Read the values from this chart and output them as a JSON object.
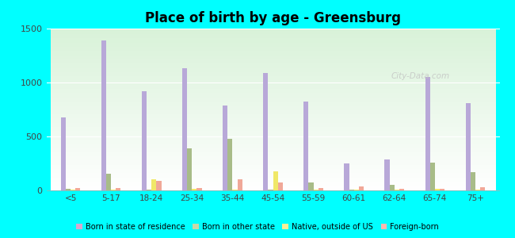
{
  "title": "Place of birth by age - Greensburg",
  "categories": [
    "<5",
    "5-17",
    "18-24",
    "25-34",
    "35-44",
    "45-54",
    "55-59",
    "60-61",
    "62-64",
    "65-74",
    "75+"
  ],
  "series": {
    "Born in state of residence": [
      680,
      1390,
      920,
      1130,
      790,
      1090,
      820,
      250,
      290,
      1050,
      810
    ],
    "Born in other state": [
      15,
      155,
      10,
      390,
      480,
      5,
      70,
      5,
      50,
      260,
      170
    ],
    "Native, outside of US": [
      5,
      5,
      105,
      15,
      5,
      175,
      5,
      5,
      5,
      15,
      5
    ],
    "Foreign-born": [
      25,
      20,
      90,
      25,
      100,
      75,
      25,
      35,
      18,
      18,
      28
    ]
  },
  "colors": {
    "Born in state of residence": "#b8a8d8",
    "Born in other state": "#a8bc88",
    "Native, outside of US": "#f0e868",
    "Foreign-born": "#f0a898"
  },
  "legend_colors": {
    "Born in state of residence": "#d8a8d0",
    "Born in other state": "#c8d8a8",
    "Native, outside of US": "#f8f098",
    "Foreign-born": "#f8b8b0"
  },
  "ylim": [
    0,
    1500
  ],
  "yticks": [
    0,
    500,
    1000,
    1500
  ],
  "background_color": "#00ffff",
  "bar_width": 0.12,
  "figsize": [
    6.5,
    3.0
  ],
  "dpi": 100
}
